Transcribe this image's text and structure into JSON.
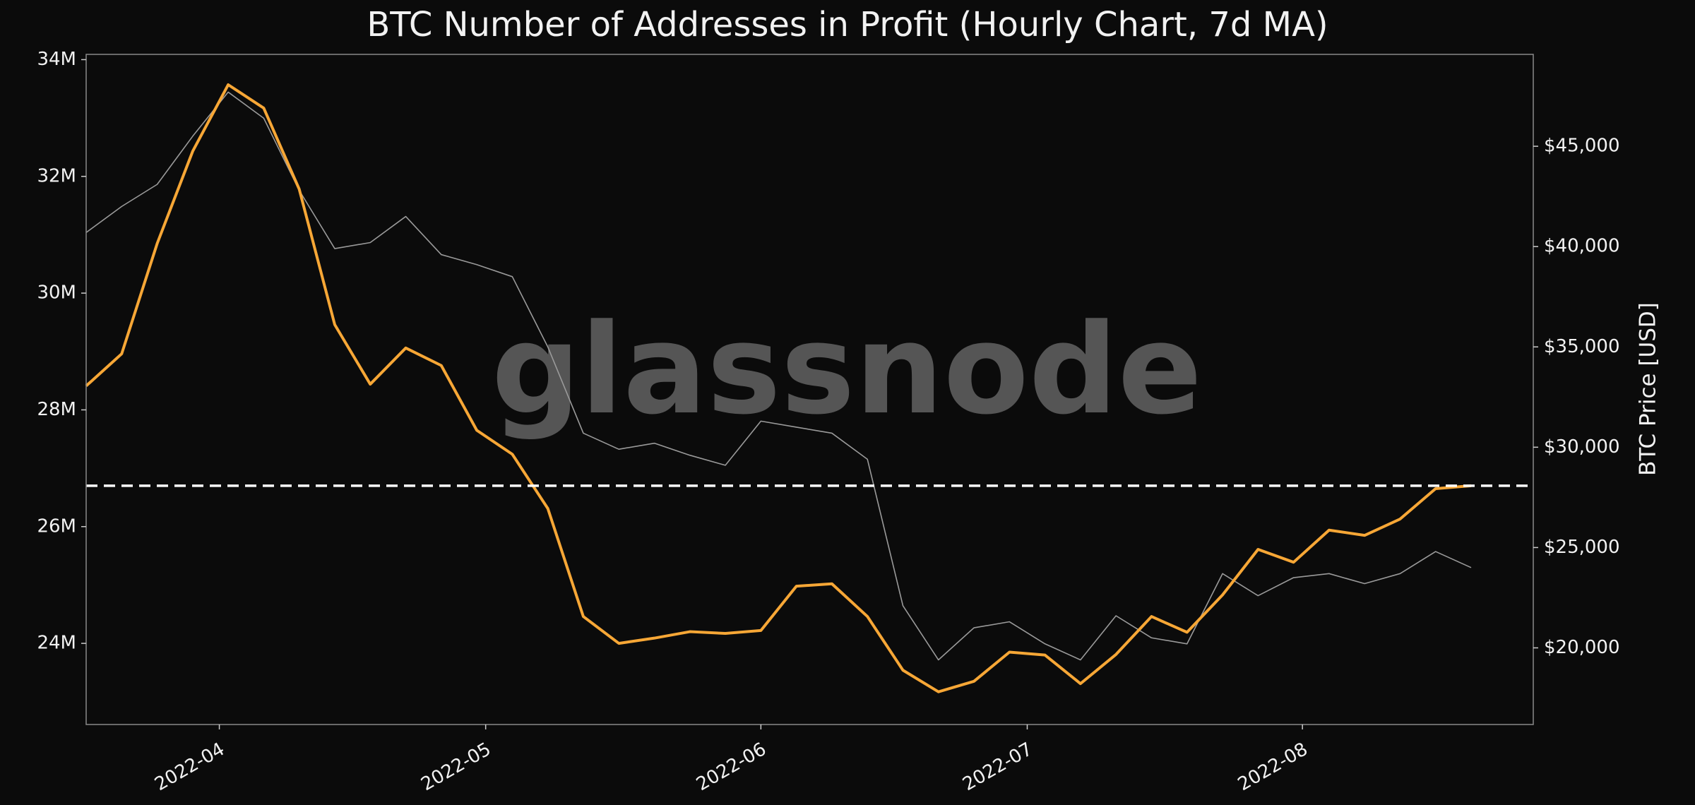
{
  "chart_data": {
    "type": "line",
    "title": "BTC Number of Addresses in Profit (Hourly Chart, 7d MA)",
    "watermark": "glassnode",
    "y2label": "BTC Price [USD]",
    "x": [
      "2022-03-17",
      "2022-03-21",
      "2022-03-25",
      "2022-03-29",
      "2022-04-02",
      "2022-04-06",
      "2022-04-10",
      "2022-04-14",
      "2022-04-18",
      "2022-04-22",
      "2022-04-26",
      "2022-04-30",
      "2022-05-04",
      "2022-05-08",
      "2022-05-12",
      "2022-05-16",
      "2022-05-20",
      "2022-05-24",
      "2022-05-28",
      "2022-06-01",
      "2022-06-05",
      "2022-06-09",
      "2022-06-13",
      "2022-06-17",
      "2022-06-21",
      "2022-06-25",
      "2022-06-29",
      "2022-07-03",
      "2022-07-07",
      "2022-07-11",
      "2022-07-15",
      "2022-07-19",
      "2022-07-23",
      "2022-07-27",
      "2022-07-31",
      "2022-08-04",
      "2022-08-08",
      "2022-08-12",
      "2022-08-16",
      "2022-08-20"
    ],
    "series": [
      {
        "color": "#9a9a9a",
        "axis": "y2",
        "values": [
          40700,
          42000,
          43100,
          45500,
          47700,
          46400,
          42800,
          39900,
          40200,
          41500,
          39600,
          39100,
          38500,
          35000,
          30700,
          29900,
          30200,
          29600,
          29100,
          31300,
          31000,
          30700,
          29400,
          22100,
          19400,
          21000,
          21300,
          20200,
          19400,
          21600,
          20500,
          20200,
          23700,
          22600,
          23500,
          23700,
          23200,
          23700,
          24800,
          24000
        ]
      },
      {
        "color": "#f7a736",
        "values": [
          28410000,
          28960000,
          30850000,
          32430000,
          33570000,
          33170000,
          31780000,
          29460000,
          28440000,
          29060000,
          28760000,
          27650000,
          27240000,
          26310000,
          24460000,
          24000000,
          24090000,
          24200000,
          24170000,
          24220000,
          24980000,
          25020000,
          24460000,
          23540000,
          23170000,
          23350000,
          23850000,
          23800000,
          23310000,
          23810000,
          24460000,
          24190000,
          24830000,
          25610000,
          25390000,
          25940000,
          25850000,
          26130000,
          26650000,
          26700000
        ]
      }
    ],
    "hline": 26700000,
    "hline_color": "#ffffff",
    "xlim": [
      "2022-03-17",
      "2022-08-27"
    ],
    "xticks": [
      {
        "value": "2022-04-01",
        "label": "2022-04"
      },
      {
        "value": "2022-05-01",
        "label": "2022-05"
      },
      {
        "value": "2022-06-01",
        "label": "2022-06"
      },
      {
        "value": "2022-07-01",
        "label": "2022-07"
      },
      {
        "value": "2022-08-01",
        "label": "2022-08"
      }
    ],
    "ylim": [
      22610000,
      34090000
    ],
    "yticks": [
      {
        "value": 24000000,
        "label": "24M"
      },
      {
        "value": 26000000,
        "label": "26M"
      },
      {
        "value": 28000000,
        "label": "28M"
      },
      {
        "value": 30000000,
        "label": "30M"
      },
      {
        "value": 32000000,
        "label": "32M"
      },
      {
        "value": 34000000,
        "label": "34M"
      }
    ],
    "y2lim": [
      16180,
      49580
    ],
    "y2ticks": [
      {
        "value": 20000,
        "label": "$20,000"
      },
      {
        "value": 25000,
        "label": "$25,000"
      },
      {
        "value": 30000,
        "label": "$30,000"
      },
      {
        "value": 35000,
        "label": "$35,000"
      },
      {
        "value": 40000,
        "label": "$40,000"
      },
      {
        "value": 45000,
        "label": "$45,000"
      }
    ]
  }
}
